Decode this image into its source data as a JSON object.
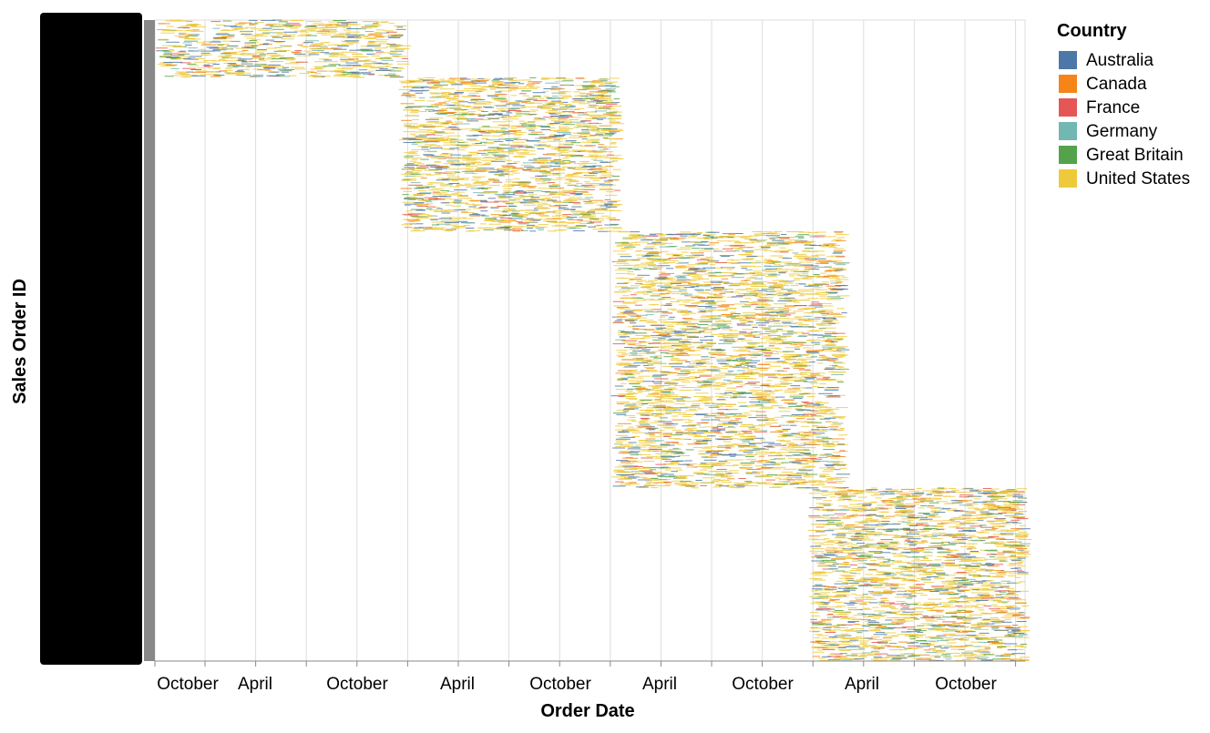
{
  "chart_data": {
    "type": "scatter",
    "mark": "tick",
    "xlabel": "Order Date",
    "ylabel": "Sales Order ID",
    "x_ticks": [
      "October",
      "April",
      "October",
      "April",
      "October",
      "April",
      "October",
      "April",
      "October"
    ],
    "legend": {
      "title": "Country",
      "placement": "right",
      "items": [
        {
          "name": "Australia",
          "color": "#4c78a8"
        },
        {
          "name": "Canada",
          "color": "#f58518"
        },
        {
          "name": "France",
          "color": "#e45756"
        },
        {
          "name": "Germany",
          "color": "#72b7b2"
        },
        {
          "name": "Great Britain",
          "color": "#54a24b"
        },
        {
          "name": "United States",
          "color": "#eeca3b"
        }
      ]
    },
    "grid": true,
    "y_tick_labels_visible": "overlapping (illegible)",
    "clusters": [
      {
        "date_start": "2010-09-01",
        "date_end": "2011-11-30",
        "order_share_start": 0.0,
        "order_share_end": 0.09
      },
      {
        "date_start": "2011-12-01",
        "date_end": "2012-12-31",
        "order_share_start": 0.09,
        "order_share_end": 0.33
      },
      {
        "date_start": "2013-01-01",
        "date_end": "2014-02-28",
        "order_share_start": 0.33,
        "order_share_end": 0.73
      },
      {
        "date_start": "2014-01-01",
        "date_end": "2015-01-31",
        "order_share_start": 0.73,
        "order_share_end": 1.0
      }
    ]
  }
}
